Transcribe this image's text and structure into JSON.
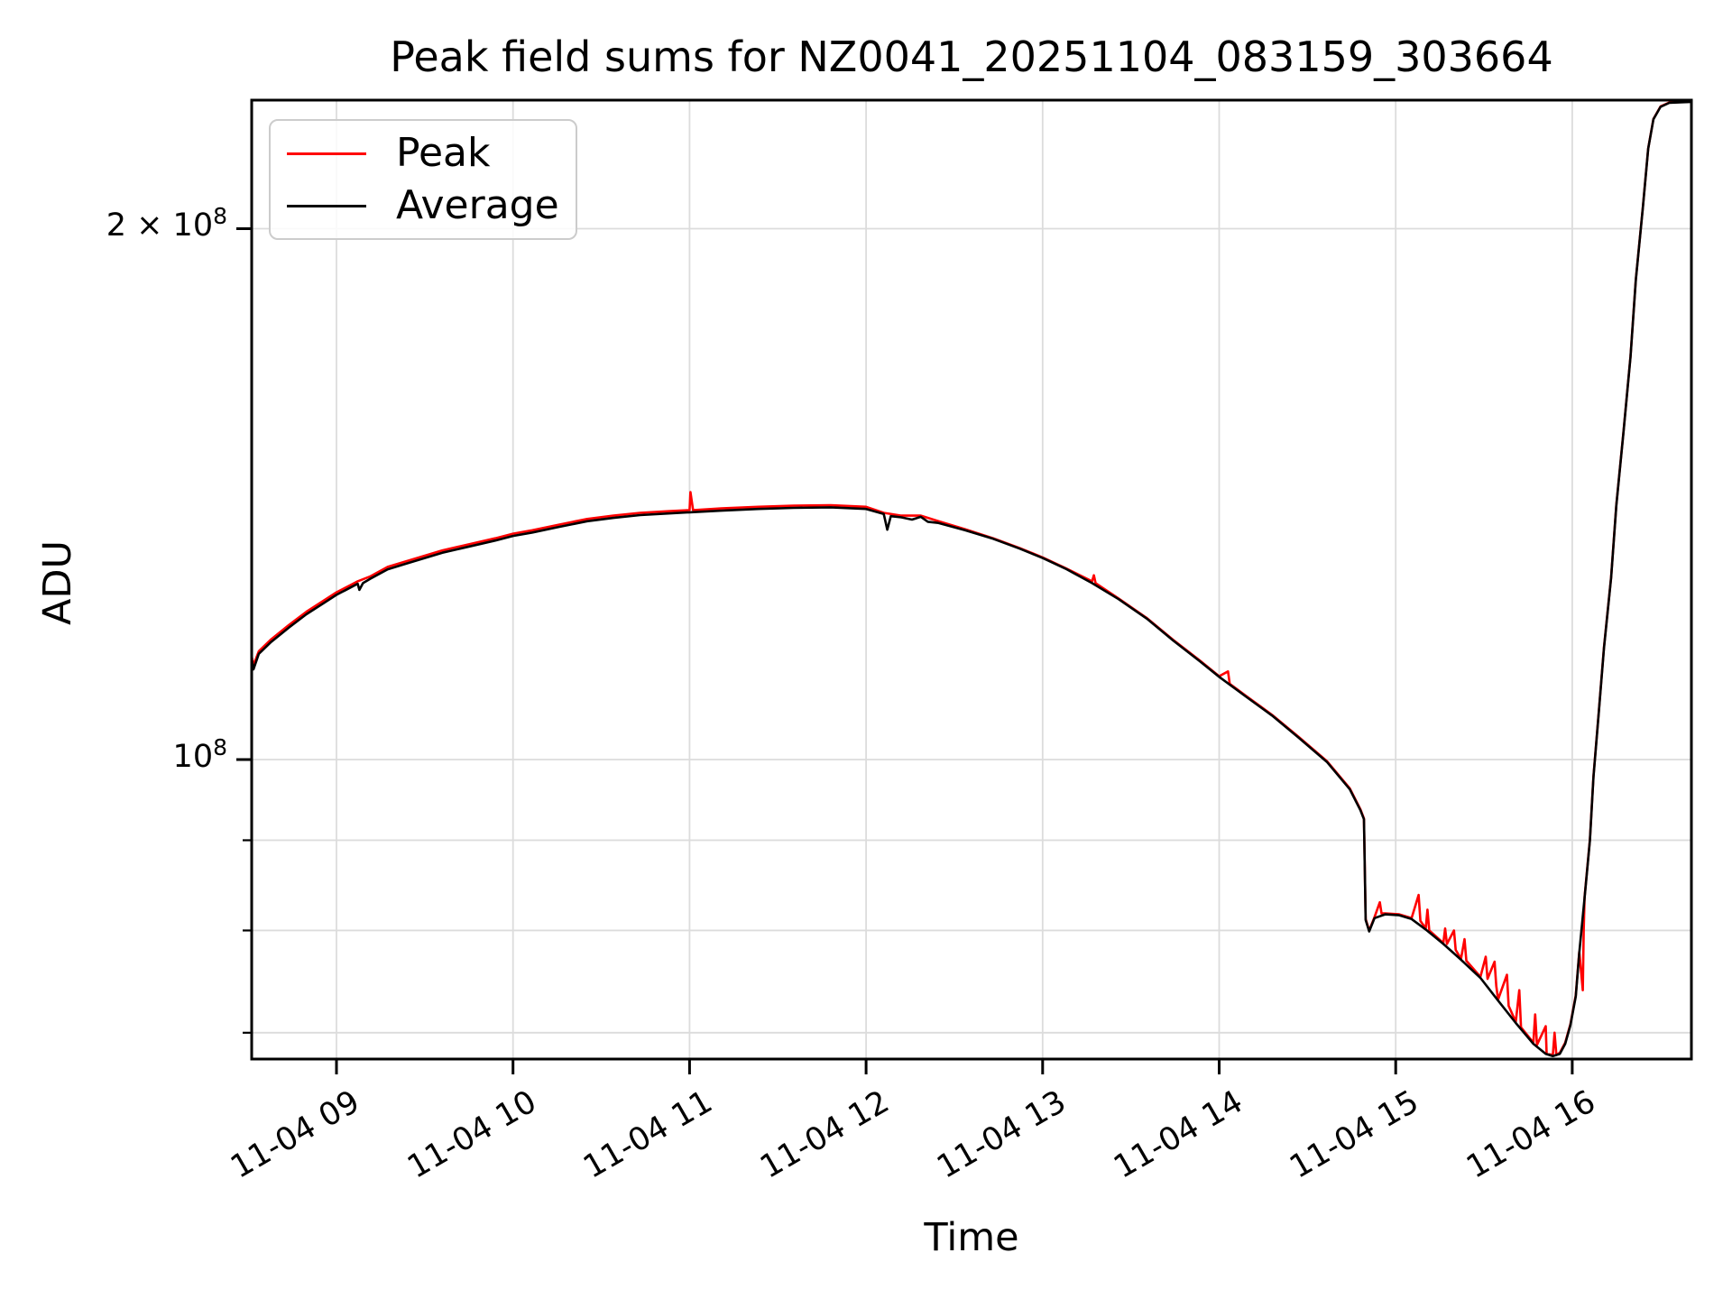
{
  "title": "Peak field sums for NZ0041_20251104_083159_303664",
  "axes": {
    "x_label": "Time",
    "y_label": "ADU"
  },
  "legend": {
    "items": [
      {
        "label": "Peak",
        "color": "#ff0000"
      },
      {
        "label": "Average",
        "color": "#000000"
      }
    ]
  },
  "y_ticks": [
    {
      "base": "2 × 10",
      "exp": "8",
      "value": 200000000.0
    },
    {
      "base": "10",
      "exp": "8",
      "value": 100000000.0
    }
  ],
  "y_minor_tick_values": [
    90000000.0,
    80000000.0,
    70000000.0
  ],
  "x_ticks": [
    {
      "label": "11-04 09",
      "hour": 9
    },
    {
      "label": "11-04 10",
      "hour": 10
    },
    {
      "label": "11-04 11",
      "hour": 11
    },
    {
      "label": "11-04 12",
      "hour": 12
    },
    {
      "label": "11-04 13",
      "hour": 13
    },
    {
      "label": "11-04 14",
      "hour": 14
    },
    {
      "label": "11-04 15",
      "hour": 15
    },
    {
      "label": "11-04 16",
      "hour": 16
    }
  ],
  "colors": {
    "background": "#ffffff",
    "grid": "#dcdcdc",
    "spine": "#000000",
    "peak": "#ff0000",
    "average": "#000000",
    "legend_border": "#cccccc"
  },
  "chart_data": {
    "type": "line",
    "title": "Peak field sums for NZ0041_20251104_083159_303664",
    "xlabel": "Time",
    "ylabel": "ADU",
    "y_scale": "log",
    "grid": true,
    "legend_position": "upper left",
    "x_date": "11-04",
    "x_range_hours": [
      8.52,
      16.675
    ],
    "ylim": [
      67700000.0,
      236000000.0
    ],
    "x_tick_hours": [
      9,
      10,
      11,
      12,
      13,
      14,
      15,
      16
    ],
    "y_gridline_values": [
      200000000.0,
      100000000.0,
      90000000.0,
      80000000.0,
      70000000.0
    ],
    "series": [
      {
        "name": "Peak",
        "color": "#ff0000",
        "points": [
          [
            8.52,
            114400000.0
          ],
          [
            8.53,
            113100000.0
          ],
          [
            8.56,
            115200000.0
          ],
          [
            8.63,
            117000000.0
          ],
          [
            8.73,
            119200000.0
          ],
          [
            8.83,
            121300000.0
          ],
          [
            8.93,
            123100000.0
          ],
          [
            9.0,
            124400000.0
          ],
          [
            9.08,
            125600000.0
          ],
          [
            9.12,
            126200000.0
          ],
          [
            9.19,
            127000000.0
          ],
          [
            9.29,
            128600000.0
          ],
          [
            9.39,
            129500000.0
          ],
          [
            9.5,
            130500000.0
          ],
          [
            9.6,
            131400000.0
          ],
          [
            9.7,
            132100000.0
          ],
          [
            9.8,
            132800000.0
          ],
          [
            9.9,
            133500000.0
          ],
          [
            10.0,
            134300000.0
          ],
          [
            10.11,
            134900000.0
          ],
          [
            10.26,
            135900000.0
          ],
          [
            10.42,
            136900000.0
          ],
          [
            10.57,
            137500000.0
          ],
          [
            10.72,
            138000000.0
          ],
          [
            10.88,
            138300000.0
          ],
          [
            11.0,
            138500000.0
          ],
          [
            11.005,
            141800000.0
          ],
          [
            11.02,
            138500000.0
          ],
          [
            11.18,
            138800000.0
          ],
          [
            11.39,
            139100000.0
          ],
          [
            11.59,
            139300000.0
          ],
          [
            11.8,
            139400000.0
          ],
          [
            12.0,
            139100000.0
          ],
          [
            12.1,
            138000000.0
          ],
          [
            12.2,
            137500000.0
          ],
          [
            12.31,
            137500000.0
          ],
          [
            12.41,
            136500000.0
          ],
          [
            12.56,
            135100000.0
          ],
          [
            12.72,
            133500000.0
          ],
          [
            12.87,
            131800000.0
          ],
          [
            13.0,
            130200000.0
          ],
          [
            13.13,
            128400000.0
          ],
          [
            13.28,
            126200000.0
          ],
          [
            13.29,
            127200000.0
          ],
          [
            13.3,
            125900000.0
          ],
          [
            13.43,
            123400000.0
          ],
          [
            13.59,
            120300000.0
          ],
          [
            13.74,
            116900000.0
          ],
          [
            13.89,
            113800000.0
          ],
          [
            14.0,
            111500000.0
          ],
          [
            14.05,
            112200000.0
          ],
          [
            14.06,
            110400000.0
          ],
          [
            14.15,
            108700000.0
          ],
          [
            14.3,
            106000000.0
          ],
          [
            14.45,
            103000000.0
          ],
          [
            14.61,
            99800000.0
          ],
          [
            14.74,
            96300000.0
          ],
          [
            14.8,
            93700000.0
          ],
          [
            14.82,
            92600000.0
          ],
          [
            14.83,
            81200000.0
          ],
          [
            14.85,
            80000000.0
          ],
          [
            14.88,
            81400000.0
          ],
          [
            14.91,
            83000000.0
          ],
          [
            14.92,
            81800000.0
          ],
          [
            14.94,
            81800000.0
          ],
          [
            15.02,
            81700000.0
          ],
          [
            15.09,
            81300000.0
          ],
          [
            15.13,
            83800000.0
          ],
          [
            15.14,
            81000000.0
          ],
          [
            15.17,
            80200000.0
          ],
          [
            15.18,
            82200000.0
          ],
          [
            15.19,
            80000000.0
          ],
          [
            15.27,
            78700000.0
          ],
          [
            15.28,
            80200000.0
          ],
          [
            15.29,
            78600000.0
          ],
          [
            15.33,
            80000000.0
          ],
          [
            15.34,
            78000000.0
          ],
          [
            15.37,
            77100000.0
          ],
          [
            15.39,
            79100000.0
          ],
          [
            15.4,
            76900000.0
          ],
          [
            15.48,
            75300000.0
          ],
          [
            15.51,
            77300000.0
          ],
          [
            15.52,
            75100000.0
          ],
          [
            15.56,
            76800000.0
          ],
          [
            15.57,
            74400000.0
          ],
          [
            15.58,
            73100000.0
          ],
          [
            15.63,
            75500000.0
          ],
          [
            15.64,
            72500000.0
          ],
          [
            15.68,
            71000000.0
          ],
          [
            15.7,
            74000000.0
          ],
          [
            15.71,
            70500000.0
          ],
          [
            15.78,
            69100000.0
          ],
          [
            15.79,
            71700000.0
          ],
          [
            15.8,
            68900000.0
          ],
          [
            15.85,
            70600000.0
          ],
          [
            15.855,
            68100000.0
          ],
          [
            15.89,
            68000000.0
          ],
          [
            15.9,
            70000000.0
          ],
          [
            15.91,
            68000000.0
          ],
          [
            15.93,
            68200000.0
          ],
          [
            15.96,
            69100000.0
          ],
          [
            15.99,
            70800000.0
          ],
          [
            16.02,
            73500000.0
          ],
          [
            16.04,
            77800000.0
          ],
          [
            16.06,
            74000000.0
          ],
          [
            16.065,
            80000000.0
          ],
          [
            16.07,
            83600000.0
          ],
          [
            16.1,
            90100000.0
          ],
          [
            16.12,
            97800000.0
          ],
          [
            16.15,
            106400000.0
          ],
          [
            16.18,
            115800000.0
          ],
          [
            16.22,
            126900000.0
          ],
          [
            16.25,
            139500000.0
          ],
          [
            16.29,
            153400000.0
          ],
          [
            16.33,
            169300000.0
          ],
          [
            16.36,
            187200000.0
          ],
          [
            16.4,
            205700000.0
          ],
          [
            16.43,
            222100000.0
          ],
          [
            16.46,
            230800000.0
          ],
          [
            16.5,
            234600000.0
          ],
          [
            16.55,
            235800000.0
          ],
          [
            16.675,
            236100000.0
          ]
        ]
      },
      {
        "name": "Average",
        "color": "#000000",
        "points": [
          [
            8.52,
            114000000.0
          ],
          [
            8.53,
            112500000.0
          ],
          [
            8.56,
            114800000.0
          ],
          [
            8.63,
            116600000.0
          ],
          [
            8.73,
            118800000.0
          ],
          [
            8.83,
            120900000.0
          ],
          [
            8.93,
            122700000.0
          ],
          [
            9.0,
            124000000.0
          ],
          [
            9.08,
            125200000.0
          ],
          [
            9.12,
            125800000.0
          ],
          [
            9.13,
            124800000.0
          ],
          [
            9.15,
            125900000.0
          ],
          [
            9.19,
            126600000.0
          ],
          [
            9.29,
            128200000.0
          ],
          [
            9.39,
            129100000.0
          ],
          [
            9.5,
            130100000.0
          ],
          [
            9.6,
            131000000.0
          ],
          [
            9.7,
            131700000.0
          ],
          [
            9.8,
            132400000.0
          ],
          [
            9.9,
            133100000.0
          ],
          [
            10.0,
            133900000.0
          ],
          [
            10.11,
            134500000.0
          ],
          [
            10.26,
            135500000.0
          ],
          [
            10.42,
            136500000.0
          ],
          [
            10.57,
            137100000.0
          ],
          [
            10.72,
            137600000.0
          ],
          [
            10.88,
            137900000.0
          ],
          [
            11.0,
            138100000.0
          ],
          [
            11.18,
            138400000.0
          ],
          [
            11.39,
            138700000.0
          ],
          [
            11.59,
            138900000.0
          ],
          [
            11.8,
            139000000.0
          ],
          [
            12.0,
            138700000.0
          ],
          [
            12.1,
            137800000.0
          ],
          [
            12.12,
            135000000.0
          ],
          [
            12.14,
            137400000.0
          ],
          [
            12.2,
            137200000.0
          ],
          [
            12.26,
            136800000.0
          ],
          [
            12.31,
            137300000.0
          ],
          [
            12.35,
            136400000.0
          ],
          [
            12.41,
            136200000.0
          ],
          [
            12.56,
            134900000.0
          ],
          [
            12.72,
            133400000.0
          ],
          [
            12.87,
            131700000.0
          ],
          [
            13.0,
            130100000.0
          ],
          [
            13.13,
            128300000.0
          ],
          [
            13.28,
            125900000.0
          ],
          [
            13.43,
            123300000.0
          ],
          [
            13.59,
            120200000.0
          ],
          [
            13.74,
            116800000.0
          ],
          [
            13.89,
            113700000.0
          ],
          [
            14.0,
            111400000.0
          ],
          [
            14.15,
            108600000.0
          ],
          [
            14.3,
            105900000.0
          ],
          [
            14.45,
            102900000.0
          ],
          [
            14.61,
            99700000.0
          ],
          [
            14.74,
            96200000.0
          ],
          [
            14.8,
            93600000.0
          ],
          [
            14.82,
            92500000.0
          ],
          [
            14.83,
            81100000.0
          ],
          [
            14.85,
            79900000.0
          ],
          [
            14.88,
            81300000.0
          ],
          [
            14.94,
            81700000.0
          ],
          [
            15.02,
            81600000.0
          ],
          [
            15.09,
            81200000.0
          ],
          [
            15.17,
            80100000.0
          ],
          [
            15.27,
            78600000.0
          ],
          [
            15.37,
            77000000.0
          ],
          [
            15.48,
            75200000.0
          ],
          [
            15.58,
            73000000.0
          ],
          [
            15.68,
            70900000.0
          ],
          [
            15.78,
            69000000.0
          ],
          [
            15.85,
            68100000.0
          ],
          [
            15.89,
            67900000.0
          ],
          [
            15.93,
            68100000.0
          ],
          [
            15.96,
            69000000.0
          ],
          [
            15.99,
            70700000.0
          ],
          [
            16.02,
            73400000.0
          ],
          [
            16.04,
            77700000.0
          ],
          [
            16.07,
            83500000.0
          ],
          [
            16.1,
            90000000.0
          ],
          [
            16.12,
            97700000.0
          ],
          [
            16.15,
            106300000.0
          ],
          [
            16.18,
            115700000.0
          ],
          [
            16.22,
            126800000.0
          ],
          [
            16.25,
            139400000.0
          ],
          [
            16.29,
            153300000.0
          ],
          [
            16.33,
            169200000.0
          ],
          [
            16.36,
            187100000.0
          ],
          [
            16.4,
            205600000.0
          ],
          [
            16.43,
            222000000.0
          ],
          [
            16.46,
            230700000.0
          ],
          [
            16.5,
            234500000.0
          ],
          [
            16.55,
            235700000.0
          ],
          [
            16.675,
            236000000.0
          ]
        ]
      }
    ]
  }
}
